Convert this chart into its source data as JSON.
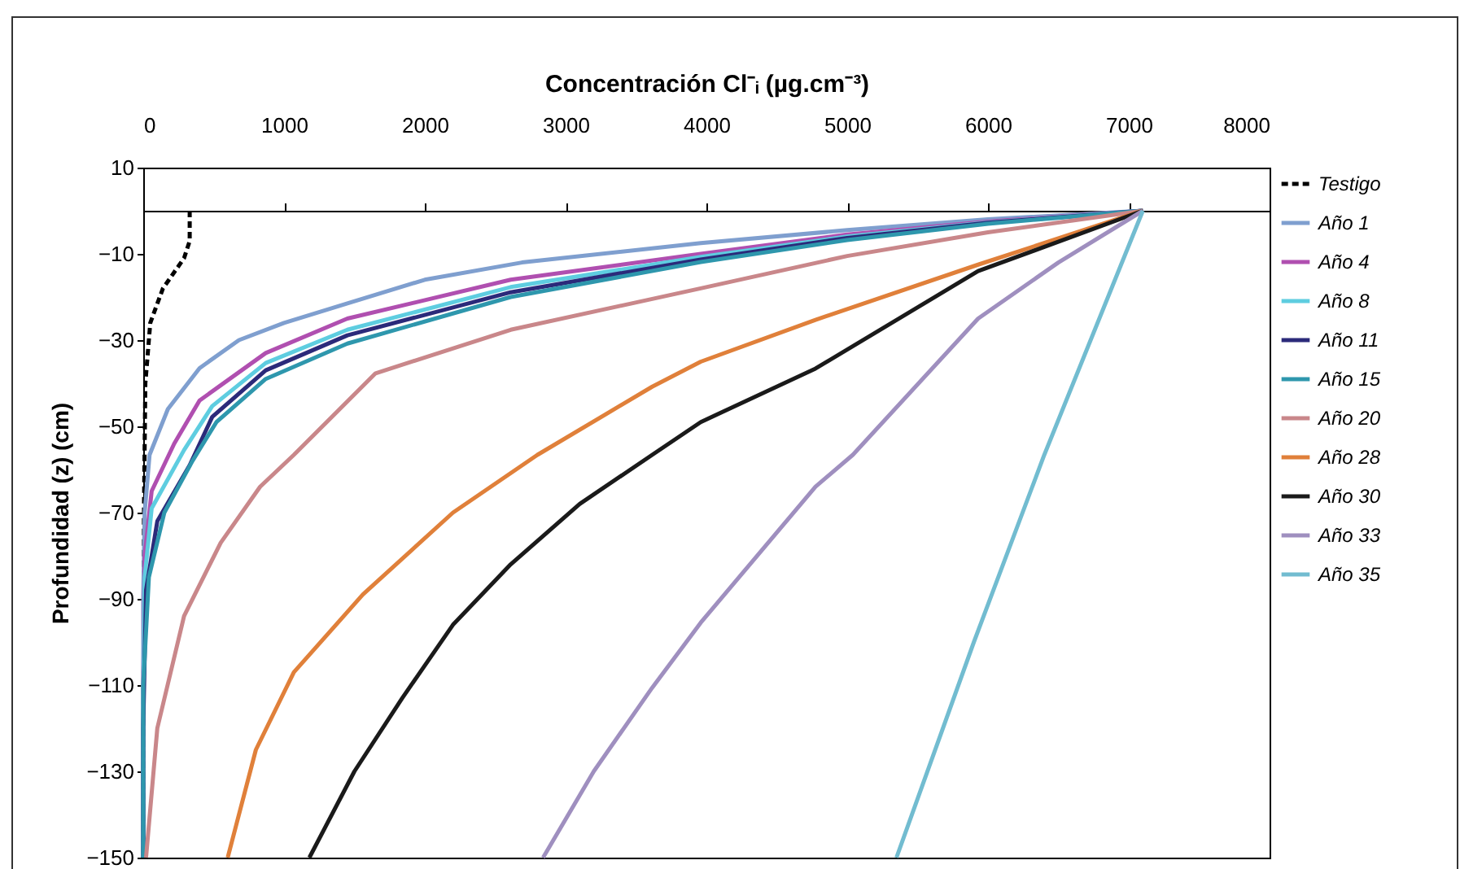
{
  "chart_data": {
    "type": "line",
    "xlabel": "Concentración Cl⁻ᵢ  (µg.cm⁻³)",
    "ylabel": "Profundidad (z) (cm)",
    "xlim": [
      0,
      8000
    ],
    "xticks": [
      0,
      1000,
      2000,
      3000,
      4000,
      5000,
      6000,
      7000,
      8000
    ],
    "ylim": [
      -150,
      10
    ],
    "yticks": [
      10,
      -10,
      -30,
      -50,
      -70,
      -90,
      -110,
      -130,
      -150
    ],
    "grid": false,
    "legend": "right",
    "series": [
      {
        "name": "Testigo",
        "color": "#000000",
        "line_style": "dashed",
        "x": [
          330,
          330,
          290,
          140,
          50,
          15,
          5,
          0
        ],
        "values": [
          0,
          -7,
          -11,
          -18,
          -26,
          -40,
          -70,
          -150
        ]
      },
      {
        "name": "Año 1",
        "color": "#7f9fcf",
        "line_style": "solid",
        "x": [
          7100,
          6000,
          5000,
          3960,
          2690,
          2000,
          1450,
          1000,
          680,
          400,
          175,
          45,
          10,
          0,
          0
        ],
        "values": [
          0,
          -2,
          -4.5,
          -7.5,
          -12,
          -16,
          -21.5,
          -26,
          -30,
          -36.5,
          -46,
          -56.6,
          -70,
          -90,
          -150
        ]
      },
      {
        "name": "Año 4",
        "color": "#b04fb0",
        "line_style": "solid",
        "x": [
          7100,
          6000,
          5000,
          3960,
          2610,
          1450,
          870,
          400,
          220,
          60,
          10,
          0,
          0
        ],
        "values": [
          0,
          -2.5,
          -5.5,
          -10,
          -16,
          -25,
          -33,
          -44,
          -54,
          -65,
          -80,
          -110,
          -150
        ]
      },
      {
        "name": "Año 8",
        "color": "#5ecde0",
        "line_style": "solid",
        "x": [
          7100,
          6000,
          5000,
          3960,
          2610,
          1450,
          870,
          490,
          290,
          60,
          10,
          0,
          0
        ],
        "values": [
          0,
          -2.7,
          -6,
          -10.7,
          -17.7,
          -27.6,
          -35.3,
          -45.3,
          -55.5,
          -69,
          -85,
          -115,
          -150
        ]
      },
      {
        "name": "Año 11",
        "color": "#2b2a7a",
        "line_style": "solid",
        "x": [
          7100,
          6000,
          5000,
          3960,
          2610,
          1450,
          870,
          490,
          330,
          100,
          20,
          0,
          0
        ],
        "values": [
          0,
          -2.8,
          -6.3,
          -11.3,
          -18.9,
          -28.9,
          -37,
          -47.8,
          -59,
          -72,
          -88,
          -120,
          -150
        ]
      },
      {
        "name": "Año 15",
        "color": "#2e97ad",
        "line_style": "solid",
        "x": [
          7100,
          6000,
          5000,
          3960,
          2610,
          1450,
          870,
          520,
          350,
          150,
          40,
          0,
          0
        ],
        "values": [
          0,
          -3,
          -6.8,
          -11.9,
          -20,
          -30.8,
          -39,
          -49,
          -58,
          -70,
          -85,
          -110,
          -150
        ]
      },
      {
        "name": "Año 20",
        "color": "#c9878a",
        "line_style": "solid",
        "x": [
          7100,
          6000,
          5000,
          3960,
          2610,
          1650,
          1070,
          830,
          550,
          290,
          100,
          20
        ],
        "values": [
          0,
          -5,
          -10.5,
          -18,
          -27.6,
          -37.7,
          -56.6,
          -64,
          -77,
          -94,
          -120,
          -150
        ]
      },
      {
        "name": "Año 28",
        "color": "#e0803a",
        "line_style": "solid",
        "x": [
          7100,
          5930,
          4775,
          3960,
          3615,
          2800,
          2200,
          1560,
          1070,
          800,
          600
        ],
        "values": [
          0,
          -12.5,
          -25.3,
          -35,
          -40.8,
          -56.6,
          -70,
          -89,
          -107,
          -125,
          -150
        ]
      },
      {
        "name": "Año 30",
        "color": "#1a1a1a",
        "line_style": "solid",
        "x": [
          7100,
          5930,
          4775,
          3960,
          3615,
          3100,
          2610,
          2200,
          1840,
          1500,
          1180
        ],
        "values": [
          0,
          -14,
          -36.6,
          -49,
          -56.6,
          -68,
          -82,
          -96,
          -113,
          -130,
          -150
        ]
      },
      {
        "name": "Año 33",
        "color": "#9f8fbf",
        "line_style": "solid",
        "x": [
          7100,
          6500,
          5930,
          5040,
          4775,
          3960,
          3615,
          3200,
          2840
        ],
        "values": [
          0,
          -12,
          -25,
          -56.6,
          -64,
          -95.5,
          -110.6,
          -130,
          -150
        ]
      },
      {
        "name": "Año 35",
        "color": "#72bcd0",
        "line_style": "solid",
        "x": [
          7100,
          6400,
          5900,
          5350
        ],
        "values": [
          0,
          -56.6,
          -100,
          -150
        ]
      }
    ]
  }
}
